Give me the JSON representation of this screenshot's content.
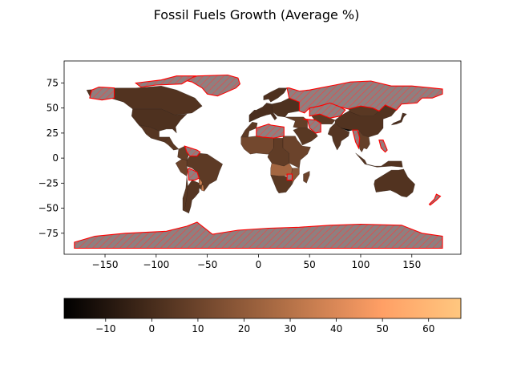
{
  "chart_data": {
    "type": "choropleth",
    "title": "Fossil Fuels Growth (Average %)",
    "xlabel": "",
    "ylabel": "",
    "xlim": [
      -190,
      198
    ],
    "ylim": [
      -96,
      97
    ],
    "x_ticks": [
      -150,
      -100,
      -50,
      0,
      50,
      100,
      150
    ],
    "y_ticks": [
      75,
      50,
      25,
      0,
      -25,
      -50,
      -75
    ],
    "colorbar": {
      "colormap": "copper",
      "range": [
        -19,
        67
      ],
      "ticks": [
        -10,
        0,
        10,
        20,
        30,
        40,
        50,
        60
      ],
      "orientation": "horizontal"
    },
    "missing_data_style": {
      "fill": "#8f7f7f",
      "edge": "#ff0000",
      "hatch": "////",
      "regions": [
        "Greenland",
        "Russia",
        "Antarctica",
        "Algeria",
        "Libya",
        "Kazakhstan",
        "Bolivia",
        "Guyana",
        "Venezuela",
        "Canada Arctic islands",
        "Zimbabwe",
        "Myanmar",
        "Philippines",
        "New Zealand",
        "Iran"
      ]
    },
    "regions": [
      {
        "name": "Canada",
        "value": 3
      },
      {
        "name": "United States",
        "value": 2
      },
      {
        "name": "Mexico",
        "value": 4
      },
      {
        "name": "Central America",
        "value": 5
      },
      {
        "name": "Colombia",
        "value": 8
      },
      {
        "name": "Brazil",
        "value": 6
      },
      {
        "name": "Peru",
        "value": 10
      },
      {
        "name": "Argentina",
        "value": 4
      },
      {
        "name": "Chile",
        "value": 5
      },
      {
        "name": "Paraguay/Uruguay",
        "value": 35
      },
      {
        "name": "Western Europe",
        "value": 1
      },
      {
        "name": "Eastern Europe",
        "value": 2
      },
      {
        "name": "Scandinavia",
        "value": 2
      },
      {
        "name": "Middle East",
        "value": 8
      },
      {
        "name": "Saudi Arabia",
        "value": 5
      },
      {
        "name": "North Africa (Morocco/Egypt)",
        "value": 6
      },
      {
        "name": "West Africa",
        "value": 12
      },
      {
        "name": "Central Africa",
        "value": 7
      },
      {
        "name": "East Africa",
        "value": 10
      },
      {
        "name": "Angola/Zambia",
        "value": 25
      },
      {
        "name": "Mozambique",
        "value": 18
      },
      {
        "name": "South Africa",
        "value": 5
      },
      {
        "name": "Madagascar",
        "value": 10
      },
      {
        "name": "Central Asia",
        "value": 6
      },
      {
        "name": "India",
        "value": 4
      },
      {
        "name": "China",
        "value": 3
      },
      {
        "name": "Mongolia",
        "value": 5
      },
      {
        "name": "Southeast Asia",
        "value": 8
      },
      {
        "name": "Indonesia",
        "value": 3
      },
      {
        "name": "Japan",
        "value": 1
      },
      {
        "name": "Australia",
        "value": 3
      },
      {
        "name": "Bhutan/Nepal",
        "value": -19
      }
    ]
  }
}
